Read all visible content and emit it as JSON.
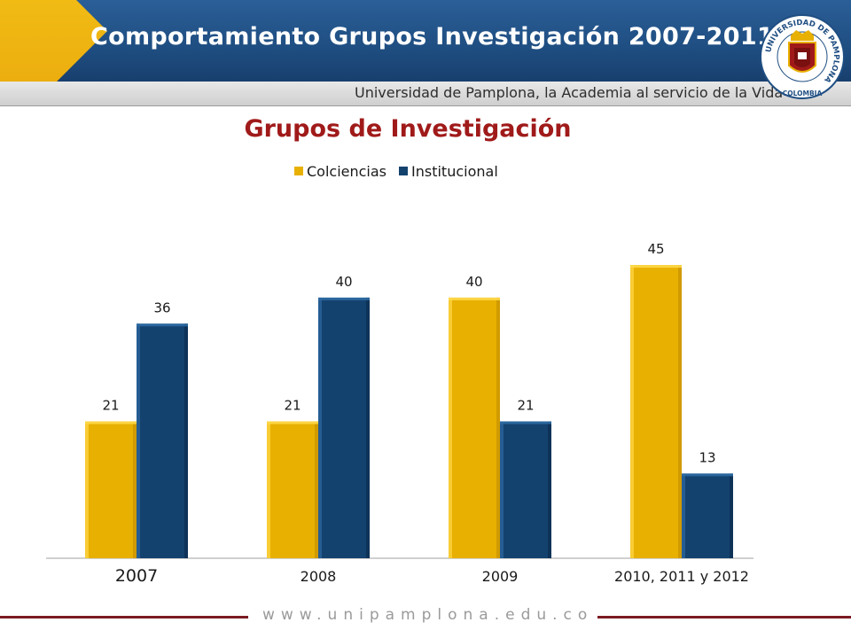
{
  "header": {
    "title": "Comportamiento Grupos Investigación 2007-2011",
    "subtitle": "Universidad de Pamplona, la Academia al servicio de la Vida"
  },
  "logo": {
    "ring_text": "UNIVERSIDAD DE PAMPLONA",
    "bottom_text": "COLOMBIA"
  },
  "footer": {
    "url": "www.unipamplona.edu.co"
  },
  "colors": {
    "colciencias": "#e8b000",
    "institucional": "#14426e",
    "header": "#1f4e82",
    "title": "#a01a1a"
  },
  "chart_data": {
    "type": "bar",
    "title": "Grupos de Investigación",
    "categories": [
      "2007",
      "2008",
      "2009",
      "2010, 2011 y 2012"
    ],
    "series": [
      {
        "name": "Colciencias",
        "values": [
          21,
          21,
          40,
          45
        ],
        "color": "#e8b000"
      },
      {
        "name": "Institucional",
        "values": [
          36,
          40,
          21,
          13
        ],
        "color": "#14426e"
      }
    ],
    "ylim": [
      0,
      50
    ],
    "legend": "top",
    "grid": false
  }
}
